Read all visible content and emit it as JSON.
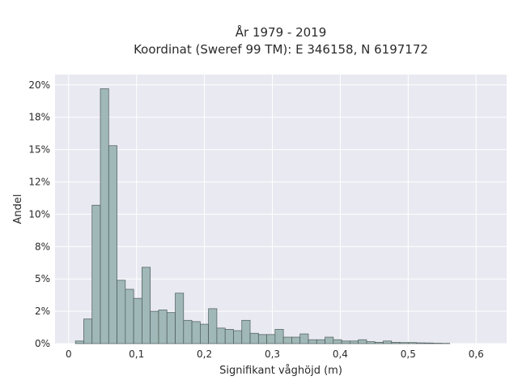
{
  "chart_data": {
    "type": "bar",
    "title": [
      "År 1979 - 2019",
      "Koordinat (Sweref 99 TM): E 346158, N 6197172"
    ],
    "xlabel": "Signifikant våghöjd (m)",
    "ylabel": "Andel",
    "xlim": [
      -0.02,
      0.645
    ],
    "ylim": [
      0,
      0.208
    ],
    "x_ticks": [
      0,
      0.1,
      0.2,
      0.3,
      0.4,
      0.5,
      0.6
    ],
    "x_tick_labels": [
      "0",
      "0,1",
      "0,2",
      "0,3",
      "0,4",
      "0,5",
      "0,6"
    ],
    "y_ticks": [
      0,
      0.025,
      0.05,
      0.075,
      0.1,
      0.125,
      0.15,
      0.175,
      0.2
    ],
    "y_tick_labels": [
      "0%",
      "2%",
      "5%",
      "8%",
      "10%",
      "12%",
      "15%",
      "18%",
      "20%"
    ],
    "bin_start": 0.01,
    "bin_width": 0.01225,
    "values": [
      0.002,
      0.019,
      0.107,
      0.197,
      0.153,
      0.049,
      0.042,
      0.035,
      0.059,
      0.025,
      0.026,
      0.024,
      0.039,
      0.018,
      0.017,
      0.015,
      0.027,
      0.012,
      0.011,
      0.01,
      0.018,
      0.008,
      0.007,
      0.007,
      0.011,
      0.005,
      0.005,
      0.0075,
      0.003,
      0.003,
      0.005,
      0.003,
      0.002,
      0.002,
      0.003,
      0.0015,
      0.001,
      0.002,
      0.001,
      0.0008,
      0.0008,
      0.0006,
      0.0005,
      0.0003,
      0.0002
    ],
    "bar_color": "#a0b8b7",
    "bar_edge_color": "#4a5a59",
    "plot_background": "#e9e9f1",
    "grid": true,
    "legend": "none"
  }
}
